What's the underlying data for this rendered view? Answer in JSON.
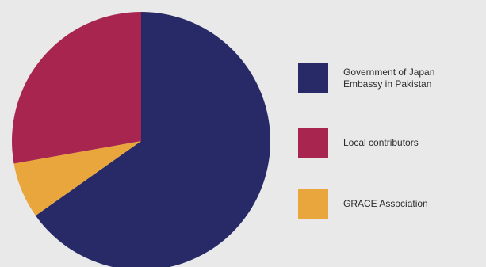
{
  "chart_data": {
    "type": "pie",
    "slices": [
      {
        "label": "Government of Japan\nEmbassy in Pakistan",
        "value": 65.2,
        "color": "#272a66"
      },
      {
        "label": "GRACE Association",
        "value": 7.0,
        "color": "#e8a63c"
      },
      {
        "label": "Local contributors",
        "value": 27.8,
        "color": "#a7254f"
      }
    ],
    "legend_position": "right",
    "legend": [
      {
        "label": "Government of Japan\nEmbassy in Pakistan",
        "color": "#272a66"
      },
      {
        "label": "Local contributors",
        "color": "#a7254f"
      },
      {
        "label": "GRACE Association",
        "color": "#e8a63c"
      }
    ]
  }
}
